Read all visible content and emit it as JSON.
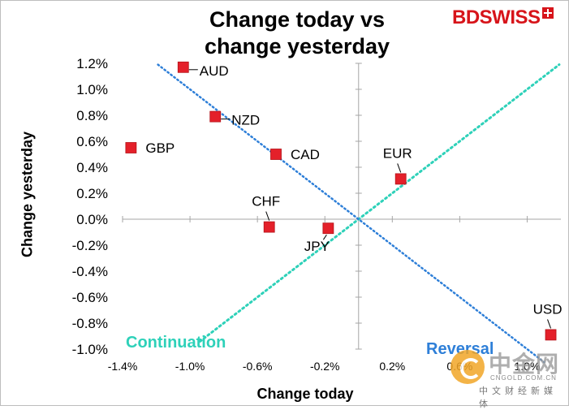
{
  "header": {
    "title_line1": "Change today vs",
    "title_line2": "change yesterday",
    "logo_text": "BDSWISS"
  },
  "annotations": {
    "continuation": "Continuation",
    "reversal": "Reversal"
  },
  "watermark": {
    "text_cn": "中金网",
    "site": "CNGOLD.COM.CN",
    "subtitle": "中文财经新媒体"
  },
  "colors": {
    "marker": "#e4202a",
    "continuation_line": "#2ed1b9",
    "reversal_line": "#2e7fd8",
    "brand": "#d7141a"
  },
  "chart_data": {
    "type": "scatter",
    "title": "Change today vs change yesterday",
    "xlabel": "Change today",
    "ylabel": "Change yesterday",
    "xlim": [
      -1.4,
      1.2
    ],
    "ylim": [
      -1.0,
      1.2
    ],
    "x_ticks": [
      -1.4,
      -1.0,
      -0.6,
      -0.2,
      0.2,
      0.6,
      1.0
    ],
    "x_tick_labels": [
      "-1.4%",
      "-1.0%",
      "-0.6%",
      "-0.2%",
      "0.2%",
      "0.6%",
      "1.0%"
    ],
    "y_ticks": [
      1.2,
      1.0,
      0.8,
      0.6,
      0.4,
      0.2,
      0.0,
      -0.2,
      -0.4,
      -0.6,
      -0.8,
      -1.0
    ],
    "y_tick_labels": [
      "1.2%",
      "1.0%",
      "0.8%",
      "0.6%",
      "0.4%",
      "0.2%",
      "0.0%",
      "-0.2%",
      "-0.4%",
      "-0.6%",
      "-0.8%",
      "-1.0%"
    ],
    "grid": false,
    "points": [
      {
        "label": "AUD",
        "x": -1.04,
        "y": 1.17,
        "label_pos": "right-leader"
      },
      {
        "label": "NZD",
        "x": -0.85,
        "y": 0.79,
        "label_pos": "right-leader"
      },
      {
        "label": "CAD",
        "x": -0.49,
        "y": 0.5,
        "label_pos": "right"
      },
      {
        "label": "GBP",
        "x": -1.35,
        "y": 0.55,
        "label_pos": "right"
      },
      {
        "label": "EUR",
        "x": 0.25,
        "y": 0.31,
        "label_pos": "above-leader"
      },
      {
        "label": "CHF",
        "x": -0.53,
        "y": -0.06,
        "label_pos": "above-leader"
      },
      {
        "label": "JPY",
        "x": -0.18,
        "y": -0.07,
        "label_pos": "below-leader"
      },
      {
        "label": "USD",
        "x": 1.14,
        "y": -0.89,
        "label_pos": "above-leader"
      }
    ],
    "reference_lines": [
      {
        "name": "Continuation",
        "from": [
          -0.94,
          -0.94
        ],
        "to": [
          1.19,
          1.19
        ],
        "style": "dotted"
      },
      {
        "name": "Reversal",
        "from": [
          -1.19,
          1.19
        ],
        "to": [
          1.1,
          -1.1
        ],
        "style": "dotted"
      }
    ]
  }
}
